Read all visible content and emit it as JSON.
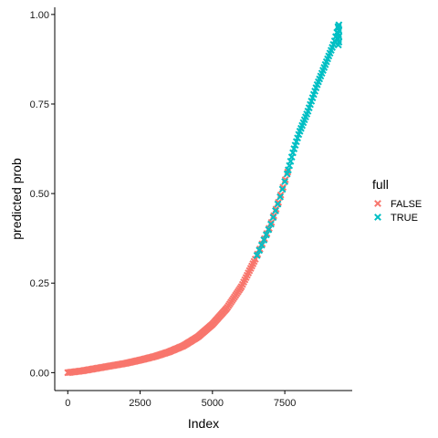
{
  "chart_data": {
    "type": "scatter",
    "xlabel": "Index",
    "ylabel": "predicted prob",
    "xlim": [
      -450,
      9830
    ],
    "ylim": [
      -0.05,
      1.02
    ],
    "x_ticks": [
      0,
      2500,
      5000,
      7500
    ],
    "x_tick_labels": [
      "0",
      "2500",
      "5000",
      "7500"
    ],
    "y_ticks": [
      0,
      0.25,
      0.5,
      0.75,
      1.0
    ],
    "y_tick_labels": [
      "0.00",
      "0.25",
      "0.50",
      "0.75",
      "1.00"
    ],
    "grid": false,
    "legend": {
      "title": "full",
      "position": "right",
      "entries": [
        {
          "label": "FALSE",
          "color": "#F8766D"
        },
        {
          "label": "TRUE",
          "color": "#00BFC4"
        }
      ]
    },
    "marker": "x",
    "series": [
      {
        "name": "FALSE",
        "color": "#F8766D",
        "points": [
          [
            0,
            0.0
          ],
          [
            500,
            0.005
          ],
          [
            1000,
            0.012
          ],
          [
            1500,
            0.019
          ],
          [
            2000,
            0.026
          ],
          [
            2500,
            0.035
          ],
          [
            3000,
            0.045
          ],
          [
            3500,
            0.058
          ],
          [
            4000,
            0.075
          ],
          [
            4500,
            0.1
          ],
          [
            5000,
            0.135
          ],
          [
            5500,
            0.18
          ],
          [
            6000,
            0.24
          ],
          [
            6500,
            0.32
          ],
          [
            7000,
            0.41
          ],
          [
            7300,
            0.48
          ],
          [
            7600,
            0.56
          ]
        ]
      },
      {
        "name": "TRUE",
        "color": "#00BFC4",
        "points": [
          [
            6500,
            0.32
          ],
          [
            7000,
            0.41
          ],
          [
            7300,
            0.48
          ],
          [
            7600,
            0.56
          ],
          [
            7800,
            0.62
          ],
          [
            8000,
            0.67
          ],
          [
            8300,
            0.73
          ],
          [
            8600,
            0.8
          ],
          [
            8900,
            0.86
          ],
          [
            9200,
            0.92
          ],
          [
            9300,
            0.95
          ],
          [
            9350,
            0.97
          ]
        ]
      }
    ]
  }
}
